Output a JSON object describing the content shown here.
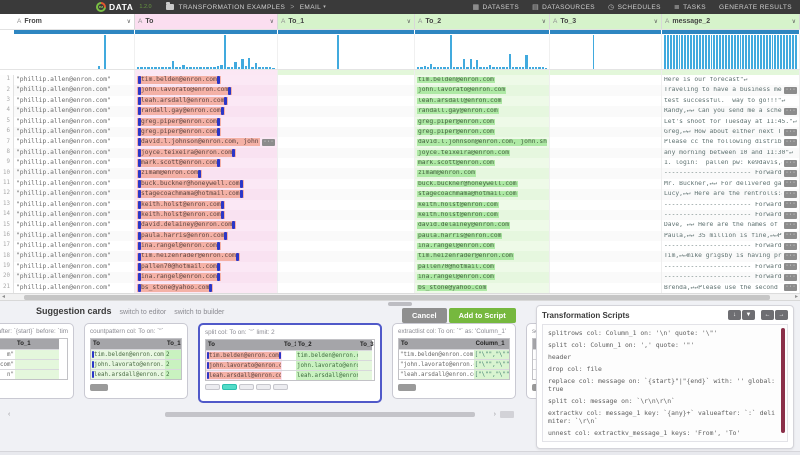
{
  "topbar": {
    "logo_prefix": "ez",
    "logo_text": "DATA",
    "version": "1.2.0",
    "breadcrumb_project": "TRANSFORMATION EXAMPLES",
    "breadcrumb_sep": ">",
    "breadcrumb_dataset": "EMAIL",
    "nav": [
      {
        "icon": "datasets-grid-icon",
        "glyph": "▦",
        "label": "DATASETS"
      },
      {
        "icon": "datasources-icon",
        "glyph": "▤",
        "label": "DATASOURCES"
      },
      {
        "icon": "schedules-clock-icon",
        "glyph": "◷",
        "label": "SCHEDULES"
      },
      {
        "icon": "tasks-list-icon",
        "glyph": "≣",
        "label": "TASKS"
      },
      {
        "icon": "",
        "glyph": "",
        "label": "GENERATE RESULTS"
      }
    ]
  },
  "grid": {
    "columns": [
      {
        "name": "From",
        "type_glyph": "A",
        "chevron": "∨",
        "head_bg": "#ffffff",
        "tint": "#ffffff",
        "hist": [
          0,
          0,
          0,
          0,
          0,
          0,
          0,
          0,
          0,
          0,
          0,
          0,
          0,
          0,
          0,
          0,
          0,
          0,
          0,
          0,
          0,
          0,
          0,
          0,
          0,
          0,
          0,
          0,
          0.08,
          0,
          1,
          0,
          0,
          0,
          0,
          0,
          0,
          0,
          0,
          0
        ]
      },
      {
        "name": "To",
        "type_glyph": "A",
        "chevron": "∨",
        "head_bg": "#fbdef0",
        "tint": "#fbe7f4",
        "hist": [
          0.06,
          0.05,
          0.07,
          0.05,
          0.06,
          0.05,
          0.07,
          0.06,
          0.05,
          0.06,
          0.25,
          0.06,
          0.05,
          0.12,
          0.06,
          0.05,
          0.07,
          0.05,
          0.06,
          0.05,
          0.07,
          0.05,
          0.06,
          0.09,
          0.12,
          1,
          0.07,
          0.05,
          0.22,
          0.06,
          0.3,
          0.08,
          0.33,
          0.06,
          0.17,
          0.05,
          0.06,
          0.05,
          0.05,
          0.04
        ]
      },
      {
        "name": "To_1",
        "type_glyph": "A",
        "chevron": "∨",
        "head_bg": "#d6f3cb",
        "tint": "#e3f7da",
        "hist": [
          0,
          0,
          0,
          0,
          0,
          0,
          0,
          0,
          0,
          0,
          0,
          0,
          0,
          0,
          0,
          0,
          0,
          1,
          0,
          0,
          0,
          0,
          0,
          0,
          0,
          0,
          0,
          0,
          0,
          0,
          0,
          0,
          0,
          0,
          0,
          0,
          0,
          0,
          0,
          0
        ]
      },
      {
        "name": "To_2",
        "type_glyph": "A",
        "chevron": "∨",
        "head_bg": "#d6f3cb",
        "tint": "#e3f7da",
        "hist": [
          0.05,
          0.06,
          0.1,
          0.06,
          0.16,
          0.06,
          0.05,
          0.07,
          0.05,
          0.06,
          1,
          0.06,
          0.05,
          0.07,
          0.28,
          0.06,
          0.3,
          0.05,
          0.26,
          0.06,
          0.05,
          0.07,
          0.12,
          0.05,
          0.06,
          0.05,
          0.07,
          0.05,
          0.45,
          0.06,
          0.05,
          0.06,
          0.05,
          0.4,
          0.05,
          0.06,
          0.05,
          0.06,
          0.05,
          0.04
        ]
      },
      {
        "name": "To_3",
        "type_glyph": "A",
        "chevron": "∨",
        "head_bg": "#d6f3cb",
        "tint": "#e3f7da",
        "hist": [
          0,
          0,
          0,
          0,
          0,
          0,
          0,
          0,
          0,
          0,
          0,
          0,
          0,
          0,
          0,
          1,
          0,
          0,
          0,
          0,
          0,
          0,
          0,
          0,
          0,
          0,
          0,
          0,
          0,
          0,
          0,
          0,
          0,
          0,
          0,
          0,
          0,
          0,
          0,
          0
        ]
      },
      {
        "name": "message_2",
        "type_glyph": "A",
        "chevron": "∨",
        "head_bg": "#d6f3cb",
        "tint": "#e3f7da",
        "hist": [
          1,
          1,
          1,
          1,
          1,
          1,
          1,
          1,
          1,
          1,
          1,
          1,
          1,
          1,
          1,
          1,
          1,
          1,
          1,
          1,
          1,
          1,
          1,
          1,
          1,
          1,
          1,
          1,
          1,
          1,
          1,
          1,
          1,
          1,
          1,
          1,
          1,
          1,
          1,
          1,
          1,
          1,
          1,
          1,
          1,
          1
        ]
      }
    ],
    "rows": [
      {
        "n": 1,
        "from": "\"phillip.allen@enron.com\"",
        "to": "tim.belden@enron.com",
        "to_trunc": false,
        "to2": "tim.belden@enron.com",
        "msg": "Here is our forecast\"↵",
        "msg_trunc": false
      },
      {
        "n": 2,
        "from": "\"phillip.allen@enron.com\"",
        "to": "john.lavorato@enron.com",
        "to_trunc": false,
        "to2": "john.lavorato@enron.com",
        "msg": "Traveling to have a business meeting ",
        "msg_trunc": true
      },
      {
        "n": 3,
        "from": "\"phillip.allen@enron.com\"",
        "to": "leah.arsdall@enron.com",
        "to_trunc": false,
        "to2": "leah.arsdall@enron.com",
        "msg": "test successful.  way to go!!!\"↵",
        "msg_trunc": false
      },
      {
        "n": 4,
        "from": "\"phillip.allen@enron.com\"",
        "to": "randall.gay@enron.com",
        "to_trunc": false,
        "to2": "randall.gay@enron.com",
        "msg": "Randy,↵↵ Can you send me a schedule",
        "msg_trunc": true
      },
      {
        "n": 5,
        "from": "\"phillip.allen@enron.com\"",
        "to": "greg.piper@enron.com",
        "to_trunc": false,
        "to2": "greg.piper@enron.com",
        "msg": "Let's shoot for Tuesday at 11:45.\"↵",
        "msg_trunc": false
      },
      {
        "n": 6,
        "from": "\"phillip.allen@enron.com\"",
        "to": "greg.piper@enron.com",
        "to_trunc": false,
        "to2": "greg.piper@enron.com",
        "msg": "Greg,↵↵ How about either next Tuesd",
        "msg_trunc": true
      },
      {
        "n": 7,
        "from": "\"phillip.allen@enron.com\"",
        "to": "david.l.johnson@enron.com, john.shaf",
        "to_trunc": true,
        "to2": "david.l.johnson@enron.com, john.shafer@en",
        "msg": "Please cc the following distribution ",
        "msg_trunc": true
      },
      {
        "n": 8,
        "from": "\"phillip.allen@enron.com\"",
        "to": "joyce.teixeira@enron.com",
        "to_trunc": false,
        "to2": "joyce.teixeira@enron.com",
        "msg": "any morning between 10 and 11:30\"↵",
        "msg_trunc": false
      },
      {
        "n": 9,
        "from": "\"phillip.allen@enron.com\"",
        "to": "mark.scott@enron.com",
        "to_trunc": false,
        "to2": "mark.scott@enron.com",
        "msg": "1. login:  pallen pw: ke9davis,↵↵ I ",
        "msg_trunc": true
      },
      {
        "n": 10,
        "from": "\"phillip.allen@enron.com\"",
        "to": "zimam@enron.com",
        "to_trunc": false,
        "to2": "zimam@enron.com",
        "msg": "----------------------- Forwarded by P",
        "msg_trunc": true
      },
      {
        "n": 11,
        "from": "\"phillip.allen@enron.com\"",
        "to": "buck.buckner@honeywell.com",
        "to_trunc": false,
        "to2": "buck.buckner@honeywell.com",
        "msg": "Mr. Buckner,↵↵ For delivered gas be",
        "msg_trunc": true
      },
      {
        "n": 12,
        "from": "\"phillip.allen@enron.com\"",
        "to": "stagecoachmama@hotmail.com",
        "to_trunc": false,
        "to2": "stagecoachmama@hotmail.com",
        "msg": "Lucy,↵↵ Here are the rentrolls:↵↵",
        "msg_trunc": true
      },
      {
        "n": 13,
        "from": "\"phillip.allen@enron.com\"",
        "to": "keith.holst@enron.com",
        "to_trunc": false,
        "to2": "keith.holst@enron.com",
        "msg": "----------------------- Forwarded by P",
        "msg_trunc": true
      },
      {
        "n": 14,
        "from": "\"phillip.allen@enron.com\"",
        "to": "keith.holst@enron.com",
        "to_trunc": false,
        "to2": "keith.holst@enron.com",
        "msg": "----------------------- Forwarded by P",
        "msg_trunc": true
      },
      {
        "n": 15,
        "from": "\"phillip.allen@enron.com\"",
        "to": "david.delainey@enron.com",
        "to_trunc": false,
        "to2": "david.delainey@enron.com",
        "msg": "Dave, ↵↵ Here are the names of the ",
        "msg_trunc": true
      },
      {
        "n": 16,
        "from": "\"phillip.allen@enron.com\"",
        "to": "paula.harris@enron.com",
        "to_trunc": false,
        "to2": "paula.harris@enron.com",
        "msg": "Paula,↵↵ 35 million is fine,↵↵Phil",
        "msg_trunc": true
      },
      {
        "n": 17,
        "from": "\"phillip.allen@enron.com\"",
        "to": "ina.rangel@enron.com",
        "to_trunc": false,
        "to2": "ina.rangel@enron.com",
        "msg": "----------------------- Forwarded by P",
        "msg_trunc": true
      },
      {
        "n": 18,
        "from": "\"phillip.allen@enron.com\"",
        "to": "tim.heizenrader@enron.com",
        "to_trunc": false,
        "to2": "tim.heizenrader@enron.com",
        "msg": "Tim,↵↵mike grigsby is having proble",
        "msg_trunc": true
      },
      {
        "n": 19,
        "from": "\"phillip.allen@enron.com\"",
        "to": "pallen70@hotmail.com",
        "to_trunc": false,
        "to2": "pallen70@hotmail.com",
        "msg": "----------------------- Forwarded by P",
        "msg_trunc": true
      },
      {
        "n": 20,
        "from": "\"phillip.allen@enron.com\"",
        "to": "ina.rangel@enron.com",
        "to_trunc": false,
        "to2": "ina.rangel@enron.com",
        "msg": "----------------------- Forwarded by P",
        "msg_trunc": true
      },
      {
        "n": 21,
        "from": "\"phillip.allen@enron.com\"",
        "to": "bs_stone@yahoo.com",
        "to_trunc": false,
        "to2": "bs_stone@yahoo.com",
        "msg": "Brenda,↵↵Please use the second chec",
        "msg_trunc": true
      }
    ]
  },
  "suggestions": {
    "title": "Suggestion cards",
    "link_editor": "switch to editor",
    "link_builder": "switch to builder",
    "cancel_label": "Cancel",
    "add_label": "Add to Script",
    "cards": [
      {
        "header": "after: `{start}` before: `tim`",
        "clipped_left": true,
        "selected": false,
        "cols": [
          {
            "label": "",
            "style": "plainr"
          },
          {
            "label": "To_1",
            "style": "greenempty"
          }
        ],
        "rows": [
          [
            "m\"",
            ""
          ],
          [
            "com\"",
            ""
          ],
          [
            "n\"",
            ""
          ]
        ],
        "pager": ""
      },
      {
        "header": "countpattern col: To on: `\"`",
        "clipped_left": false,
        "selected": false,
        "cols": [
          {
            "label": "To",
            "style": "greenm"
          },
          {
            "label": "To_1",
            "style": "greenval"
          }
        ],
        "rows": [
          [
            "tim.belden@enron.com",
            "2"
          ],
          [
            "john.lavorato@enron.com",
            "2"
          ],
          [
            "leah.arsdall@enron.com",
            "2"
          ]
        ],
        "pager": "pill"
      },
      {
        "header": "split col: To on: `\"` limit: 2",
        "clipped_left": false,
        "selected": true,
        "cols": [
          {
            "label": "To",
            "style": "pinkm"
          },
          {
            "label": "To_1",
            "style": "empty"
          },
          {
            "label": "To_2",
            "style": "greenval"
          },
          {
            "label": "To_3",
            "style": "greenempty"
          }
        ],
        "rows": [
          [
            "tim.belden@enron.com",
            "",
            "tim.belden@enron.com",
            ""
          ],
          [
            "john.lavorato@enron.com",
            "",
            "john.lavorato@enron.com",
            ""
          ],
          [
            "leah.arsdall@enron.com",
            "",
            "leah.arsdall@enron.com",
            ""
          ]
        ],
        "pager": "dots",
        "dots_count": 5,
        "dots_active": 1
      },
      {
        "header": "extractlist col: To on: `\"` as: 'Column_1'",
        "clipped_left": false,
        "selected": false,
        "cols": [
          {
            "label": "To",
            "style": "quoted"
          },
          {
            "label": "Column_1",
            "style": "bracket"
          }
        ],
        "rows": [
          [
            "\"tim.belden@enron.com\"",
            "[\"\\\"\",\"\\\"\"]"
          ],
          [
            "\"john.lavorato@enron.com\"",
            "[\"\\\"\",\"\\\"\"]"
          ],
          [
            "\"leah.arsdall@enron.com\"",
            "[\"\\\"\",\"\\\"\"]"
          ]
        ],
        "pager": "pill"
      },
      {
        "header": "se",
        "clipped_left": false,
        "selected": false,
        "cols": [
          {
            "label": "",
            "style": "plainr"
          }
        ],
        "rows": [
          [
            ""
          ],
          [
            ""
          ],
          [
            ""
          ]
        ],
        "pager": "pill"
      }
    ]
  },
  "scripts": {
    "title": "Transformation Scripts",
    "buttons": [
      {
        "icon": "download-icon",
        "glyph": "↓"
      },
      {
        "icon": "filter-icon",
        "glyph": "▼"
      },
      {
        "icon": "arrow-left-icon",
        "glyph": "←"
      },
      {
        "icon": "arrow-right-icon",
        "glyph": "→"
      }
    ],
    "lines": [
      {
        "text": "splitrows col: Column_1 on: '\\n' quote: '\\\"'",
        "dim": false
      },
      {
        "text": "split col: Column_1 on: ',' quote: '\"'",
        "dim": false
      },
      {
        "text": "header",
        "dim": false
      },
      {
        "text": "drop col: file",
        "dim": false
      },
      {
        "text": "replace col: message on: `{start}\"|\"{end}` with: '' global: true",
        "dim": false
      },
      {
        "text": "split col: message on: `\\r\\n\\r\\n`",
        "dim": false
      },
      {
        "text": "extractkv col: message_1 key: `{any}+` valueafter: `:` delimiter: `\\r\\n`",
        "dim": false
      },
      {
        "text": "unnest col: extractkv_message_1 keys: 'From', 'To'",
        "dim": false
      },
      {
        "text": "drop col: extractkv_message_1",
        "dim": false
      },
      {
        "text": "drop col: message_1",
        "dim": false
      },
      {
        "text": "rename col: message_2 to: 'message';",
        "dim": true
      }
    ]
  }
}
